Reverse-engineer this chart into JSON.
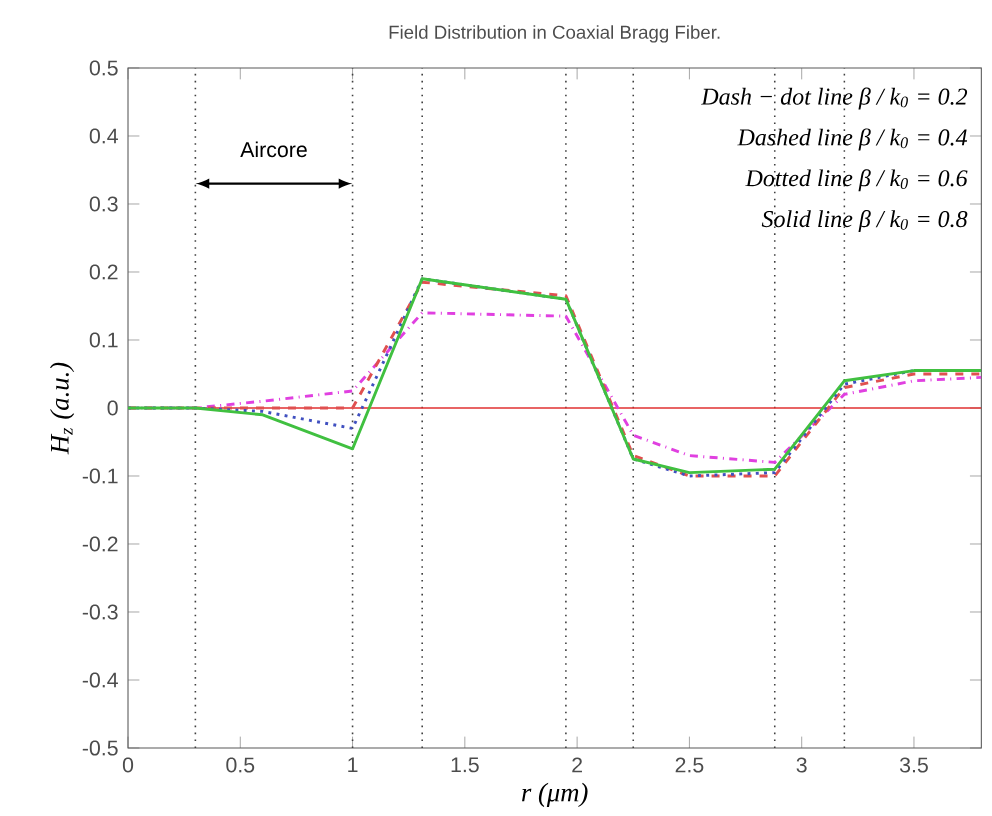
{
  "chart_data": {
    "type": "line",
    "title": "Field Distribution in Coaxial Bragg Fiber.",
    "xlabel": "r (μm)",
    "ylabel": "H$_{z}$ (a.u.)",
    "x": [
      0,
      0.3,
      0.6,
      1.0,
      1.31,
      1.95,
      2.25,
      2.5,
      2.88,
      3.19,
      3.5,
      3.8
    ],
    "series": [
      {
        "color": "#e040e0",
        "line_style": "dashdot",
        "values": [
          0,
          0,
          0.01,
          0.025,
          0.14,
          0.135,
          -0.04,
          -0.07,
          -0.08,
          0.02,
          0.04,
          0.045
        ]
      },
      {
        "color": "#e05050",
        "line_style": "dashed",
        "values": [
          0,
          0,
          0,
          0.0,
          0.185,
          0.165,
          -0.07,
          -0.1,
          -0.1,
          0.03,
          0.05,
          0.05
        ]
      },
      {
        "color": "#4050c0",
        "line_style": "dotted",
        "values": [
          0,
          0,
          -0.005,
          -0.03,
          0.19,
          0.16,
          -0.075,
          -0.1,
          -0.095,
          0.035,
          0.055,
          0.055
        ]
      },
      {
        "color": "#40c040",
        "line_style": "solid",
        "values": [
          0,
          0,
          -0.01,
          -0.06,
          0.19,
          0.16,
          -0.075,
          -0.095,
          -0.09,
          0.04,
          0.055,
          0.055
        ]
      }
    ],
    "xlim": [
      0,
      3.8
    ],
    "ylim": [
      -0.5,
      0.5
    ],
    "xticks": [
      0,
      0.5,
      1,
      1.5,
      2,
      2.5,
      3,
      3.5
    ],
    "yticks": [
      -0.5,
      -0.4,
      -0.3,
      -0.2,
      -0.1,
      0,
      0.1,
      0.2,
      0.3,
      0.4,
      0.5
    ],
    "ref_lines": [
      {
        "axis": "x",
        "value": 0.3,
        "color": "#404040",
        "line_style": "dotted"
      },
      {
        "axis": "x",
        "value": 1.0,
        "color": "#404040",
        "line_style": "dotted"
      },
      {
        "axis": "x",
        "value": 1.31,
        "color": "#404040",
        "line_style": "dotted"
      },
      {
        "axis": "x",
        "value": 1.95,
        "color": "#404040",
        "line_style": "dotted"
      },
      {
        "axis": "x",
        "value": 2.25,
        "color": "#404040",
        "line_style": "dotted"
      },
      {
        "axis": "x",
        "value": 2.88,
        "color": "#404040",
        "line_style": "dotted"
      },
      {
        "axis": "x",
        "value": 3.19,
        "color": "#404040",
        "line_style": "dotted"
      },
      {
        "axis": "y",
        "value": 0,
        "color": "#e03030",
        "line_style": "solid"
      }
    ],
    "annotations": [
      "Aircore",
      "Dash − dot line β / k$_{0}$ = 0.2",
      "Dashed line β / k$_{0}$ = 0.4",
      "Dotted line β / k$_{0}$ = 0.6",
      "Solid line β / k$_{0}$ = 0.8"
    ],
    "grid": false,
    "marker": "none"
  }
}
